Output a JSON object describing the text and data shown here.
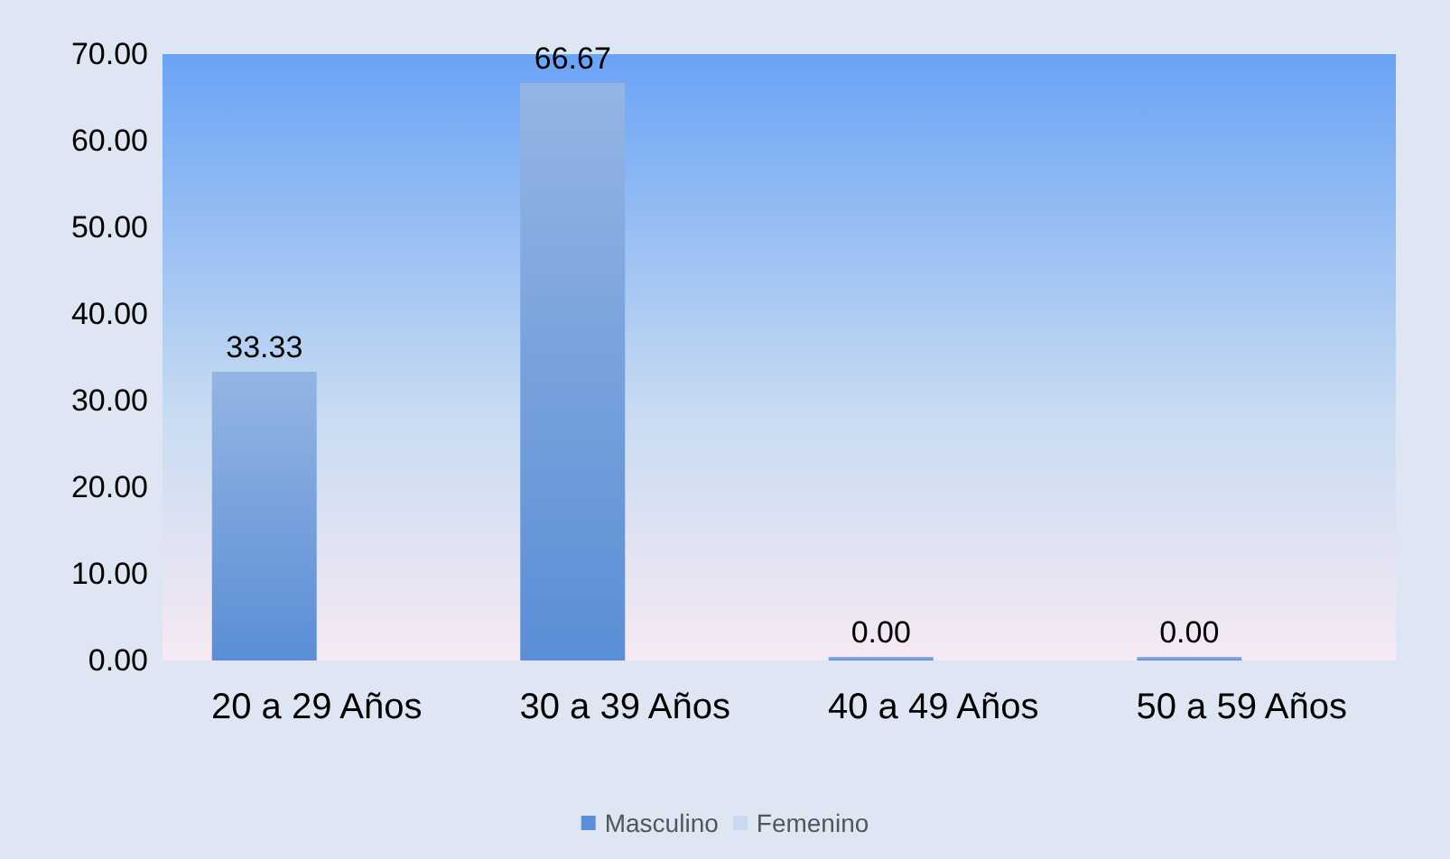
{
  "chart_data": {
    "type": "bar",
    "categories": [
      "20 a 29 Años",
      "30 a 39 Años",
      "40 a 49 Años",
      "50 a 59 Años"
    ],
    "series": [
      {
        "name": "Masculino",
        "color": "#5b8ed6",
        "values": [
          33.33,
          66.67,
          0,
          0
        ],
        "value_labels": [
          "33.33",
          "66.67",
          "0.00",
          "0.00"
        ]
      },
      {
        "name": "Femenino",
        "color": "#c9d9f2",
        "values": [
          null,
          null,
          null,
          null
        ]
      }
    ],
    "ylim": [
      0,
      70
    ],
    "yticks": [
      {
        "value": 0,
        "label": "0.00"
      },
      {
        "value": 10,
        "label": "10.00"
      },
      {
        "value": 20,
        "label": "20.00"
      },
      {
        "value": 30,
        "label": "30.00"
      },
      {
        "value": 40,
        "label": "40.00"
      },
      {
        "value": 50,
        "label": "50.00"
      },
      {
        "value": 60,
        "label": "60.00"
      },
      {
        "value": 70,
        "label": "70.00"
      }
    ],
    "grid": false,
    "legend": "bottom"
  }
}
